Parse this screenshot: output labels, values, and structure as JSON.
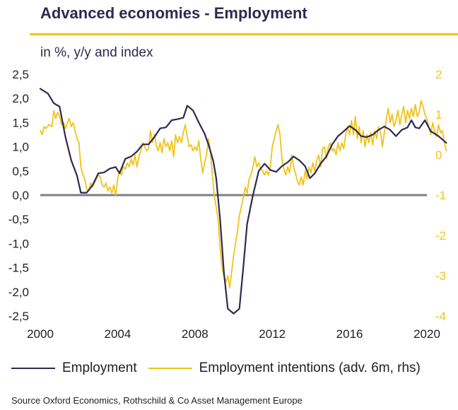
{
  "header": {
    "title": "Advanced economies - Employment",
    "subtitle": "in %, y/y and index",
    "rule_color": "#f5c518"
  },
  "legend": {
    "employment": "Employment",
    "intentions": "Employment intentions (adv. 6m, rhs)"
  },
  "footer": {
    "source": "Source Oxford Economics, Rothschild & Co Asset Management Europe"
  },
  "chart_data": {
    "type": "line",
    "x_axis": {
      "ticks": [
        "2000",
        "2004",
        "2008",
        "2012",
        "2016",
        "2020"
      ],
      "xlim": [
        2000,
        2020
      ]
    },
    "y_left": {
      "ticks": [
        "2,5",
        "2,0",
        "1,5",
        "1,0",
        "0,5",
        "0,0",
        "-0,5",
        "-1,0",
        "-1,5",
        "-2,0",
        "-2,5"
      ],
      "ylim": [
        -2.5,
        2.5
      ]
    },
    "y_right": {
      "ticks": [
        "2",
        "1",
        "0",
        "-1",
        "-2",
        "-3",
        "-4"
      ],
      "ylim": [
        -4,
        2
      ]
    },
    "series": [
      {
        "name": "Employment",
        "axis": "left",
        "color": "#2e2a4f",
        "points": [
          [
            2000.0,
            2.2
          ],
          [
            2000.4,
            2.1
          ],
          [
            2000.7,
            1.9
          ],
          [
            2001.0,
            1.83
          ],
          [
            2001.3,
            1.2
          ],
          [
            2001.6,
            0.72
          ],
          [
            2001.9,
            0.4
          ],
          [
            2002.1,
            0.05
          ],
          [
            2002.4,
            0.05
          ],
          [
            2002.7,
            0.2
          ],
          [
            2003.0,
            0.45
          ],
          [
            2003.3,
            0.47
          ],
          [
            2003.6,
            0.55
          ],
          [
            2003.9,
            0.58
          ],
          [
            2004.1,
            0.45
          ],
          [
            2004.4,
            0.75
          ],
          [
            2004.7,
            0.8
          ],
          [
            2005.0,
            0.9
          ],
          [
            2005.3,
            1.05
          ],
          [
            2005.6,
            1.05
          ],
          [
            2005.9,
            1.2
          ],
          [
            2006.2,
            1.38
          ],
          [
            2006.5,
            1.4
          ],
          [
            2006.8,
            1.55
          ],
          [
            2007.1,
            1.57
          ],
          [
            2007.4,
            1.6
          ],
          [
            2007.6,
            1.85
          ],
          [
            2007.9,
            1.75
          ],
          [
            2008.2,
            1.5
          ],
          [
            2008.5,
            1.27
          ],
          [
            2008.7,
            1.05
          ],
          [
            2008.95,
            0.7
          ],
          [
            2009.1,
            0.35
          ],
          [
            2009.3,
            -0.5
          ],
          [
            2009.5,
            -1.6
          ],
          [
            2009.7,
            -2.35
          ],
          [
            2010.0,
            -2.45
          ],
          [
            2010.3,
            -2.35
          ],
          [
            2010.5,
            -1.5
          ],
          [
            2010.7,
            -0.6
          ],
          [
            2011.0,
            0.0
          ],
          [
            2011.3,
            0.5
          ],
          [
            2011.6,
            0.65
          ],
          [
            2011.9,
            0.52
          ],
          [
            2012.2,
            0.48
          ],
          [
            2012.5,
            0.6
          ],
          [
            2012.8,
            0.68
          ],
          [
            2013.1,
            0.8
          ],
          [
            2013.4,
            0.72
          ],
          [
            2013.7,
            0.6
          ],
          [
            2013.95,
            0.35
          ],
          [
            2014.2,
            0.45
          ],
          [
            2014.5,
            0.65
          ],
          [
            2014.8,
            0.8
          ],
          [
            2015.1,
            1.05
          ],
          [
            2015.4,
            1.22
          ],
          [
            2015.7,
            1.32
          ],
          [
            2016.0,
            1.43
          ],
          [
            2016.3,
            1.35
          ],
          [
            2016.6,
            1.22
          ],
          [
            2016.9,
            1.2
          ],
          [
            2017.2,
            1.25
          ],
          [
            2017.5,
            1.35
          ],
          [
            2017.8,
            1.42
          ],
          [
            2018.1,
            1.35
          ],
          [
            2018.4,
            1.22
          ],
          [
            2018.7,
            1.35
          ],
          [
            2019.0,
            1.4
          ],
          [
            2019.2,
            1.55
          ],
          [
            2019.4,
            1.4
          ],
          [
            2019.6,
            1.38
          ],
          [
            2019.9,
            1.55
          ],
          [
            2020.2,
            1.32
          ],
          [
            2020.6,
            1.22
          ],
          [
            2021.0,
            1.08
          ]
        ]
      },
      {
        "name": "Employment intentions (adv. 6m, rhs)",
        "axis": "right",
        "color": "#f0c419",
        "points": [
          [
            2000.0,
            0.6
          ],
          [
            2000.1,
            0.5
          ],
          [
            2000.2,
            0.7
          ],
          [
            2000.3,
            0.65
          ],
          [
            2000.45,
            0.75
          ],
          [
            2000.6,
            0.7
          ],
          [
            2000.7,
            1.1
          ],
          [
            2000.8,
            0.9
          ],
          [
            2000.9,
            1.05
          ],
          [
            2001.0,
            0.95
          ],
          [
            2001.1,
            0.75
          ],
          [
            2001.2,
            0.8
          ],
          [
            2001.3,
            0.65
          ],
          [
            2001.4,
            0.8
          ],
          [
            2001.5,
            0.9
          ],
          [
            2001.6,
            0.7
          ],
          [
            2001.7,
            0.8
          ],
          [
            2001.8,
            0.6
          ],
          [
            2001.9,
            0.4
          ],
          [
            2002.0,
            0.3
          ],
          [
            2002.1,
            -0.3
          ],
          [
            2002.2,
            -0.5
          ],
          [
            2002.3,
            -0.6
          ],
          [
            2002.4,
            -0.85
          ],
          [
            2002.5,
            -0.9
          ],
          [
            2002.6,
            -0.7
          ],
          [
            2002.7,
            -0.8
          ],
          [
            2002.8,
            -0.7
          ],
          [
            2002.9,
            -0.6
          ],
          [
            2003.0,
            -0.5
          ],
          [
            2003.1,
            -0.55
          ],
          [
            2003.2,
            -0.75
          ],
          [
            2003.3,
            -0.8
          ],
          [
            2003.4,
            -0.7
          ],
          [
            2003.5,
            -0.9
          ],
          [
            2003.6,
            -0.8
          ],
          [
            2003.7,
            -0.95
          ],
          [
            2003.8,
            -0.75
          ],
          [
            2003.9,
            -1.0
          ],
          [
            2004.0,
            -0.6
          ],
          [
            2004.1,
            -0.4
          ],
          [
            2004.2,
            -0.5
          ],
          [
            2004.3,
            -0.3
          ],
          [
            2004.4,
            -0.35
          ],
          [
            2004.5,
            -0.2
          ],
          [
            2004.6,
            -0.3
          ],
          [
            2004.7,
            -0.1
          ],
          [
            2004.8,
            -0.25
          ],
          [
            2004.9,
            0.0
          ],
          [
            2005.0,
            -0.3
          ],
          [
            2005.1,
            -0.05
          ],
          [
            2005.2,
            0.1
          ],
          [
            2005.3,
            0.3
          ],
          [
            2005.4,
            0.2
          ],
          [
            2005.5,
            0.1
          ],
          [
            2005.6,
            0.15
          ],
          [
            2005.7,
            0.6
          ],
          [
            2005.8,
            0.3
          ],
          [
            2005.9,
            0.5
          ],
          [
            2006.0,
            0.25
          ],
          [
            2006.1,
            0.1
          ],
          [
            2006.2,
            0.3
          ],
          [
            2006.3,
            0.05
          ],
          [
            2006.4,
            0.4
          ],
          [
            2006.5,
            0.2
          ],
          [
            2006.6,
            0.3
          ],
          [
            2006.7,
            0.1
          ],
          [
            2006.8,
            0.35
          ],
          [
            2006.9,
            -0.05
          ],
          [
            2007.0,
            0.5
          ],
          [
            2007.1,
            0.3
          ],
          [
            2007.2,
            0.45
          ],
          [
            2007.3,
            0.3
          ],
          [
            2007.4,
            0.55
          ],
          [
            2007.5,
            0.75
          ],
          [
            2007.6,
            0.45
          ],
          [
            2007.7,
            0.2
          ],
          [
            2007.8,
            0.25
          ],
          [
            2007.9,
            0.1
          ],
          [
            2008.0,
            0.2
          ],
          [
            2008.1,
            0.1
          ],
          [
            2008.2,
            0.35
          ],
          [
            2008.3,
            -0.1
          ],
          [
            2008.4,
            -0.45
          ],
          [
            2008.5,
            -0.2
          ],
          [
            2008.6,
            0.0
          ],
          [
            2008.7,
            0.4
          ],
          [
            2008.8,
            0.1
          ],
          [
            2008.9,
            -0.5
          ],
          [
            2009.0,
            -1.0
          ],
          [
            2009.1,
            -1.3
          ],
          [
            2009.2,
            -1.6
          ],
          [
            2009.3,
            -2.3
          ],
          [
            2009.4,
            -2.8
          ],
          [
            2009.5,
            -3.0
          ],
          [
            2009.6,
            -3.15
          ],
          [
            2009.7,
            -3.0
          ],
          [
            2009.8,
            -3.3
          ],
          [
            2009.9,
            -2.9
          ],
          [
            2010.0,
            -2.5
          ],
          [
            2010.1,
            -2.2
          ],
          [
            2010.2,
            -1.9
          ],
          [
            2010.3,
            -1.5
          ],
          [
            2010.4,
            -1.3
          ],
          [
            2010.5,
            -1.05
          ],
          [
            2010.6,
            -0.8
          ],
          [
            2010.7,
            -0.95
          ],
          [
            2010.8,
            -0.6
          ],
          [
            2010.9,
            -0.5
          ],
          [
            2011.0,
            -0.3
          ],
          [
            2011.1,
            -0.05
          ],
          [
            2011.2,
            -0.3
          ],
          [
            2011.3,
            -0.2
          ],
          [
            2011.4,
            -0.35
          ],
          [
            2011.5,
            -0.4
          ],
          [
            2011.6,
            -0.5
          ],
          [
            2011.7,
            -0.4
          ],
          [
            2011.8,
            -0.5
          ],
          [
            2011.9,
            -0.3
          ],
          [
            2012.0,
            0.2
          ],
          [
            2012.1,
            0.4
          ],
          [
            2012.2,
            0.6
          ],
          [
            2012.3,
            0.75
          ],
          [
            2012.4,
            0.5
          ],
          [
            2012.5,
            -0.1
          ],
          [
            2012.6,
            -0.35
          ],
          [
            2012.7,
            -0.5
          ],
          [
            2012.8,
            -0.3
          ],
          [
            2012.9,
            -0.45
          ],
          [
            2013.0,
            0.0
          ],
          [
            2013.1,
            -0.3
          ],
          [
            2013.2,
            -0.45
          ],
          [
            2013.3,
            -0.65
          ],
          [
            2013.4,
            -0.75
          ],
          [
            2013.5,
            -0.55
          ],
          [
            2013.6,
            -0.75
          ],
          [
            2013.7,
            -0.4
          ],
          [
            2013.8,
            -0.6
          ],
          [
            2013.9,
            -0.3
          ],
          [
            2014.0,
            -0.45
          ],
          [
            2014.1,
            -0.2
          ],
          [
            2014.2,
            -0.4
          ],
          [
            2014.3,
            -0.15
          ],
          [
            2014.4,
            0.0
          ],
          [
            2014.5,
            -0.3
          ],
          [
            2014.6,
            0.15
          ],
          [
            2014.7,
            0.2
          ],
          [
            2014.8,
            -0.1
          ],
          [
            2014.9,
            0.2
          ],
          [
            2015.0,
            0.3
          ],
          [
            2015.1,
            0.1
          ],
          [
            2015.2,
            0.15
          ],
          [
            2015.3,
            0.0
          ],
          [
            2015.4,
            0.3
          ],
          [
            2015.5,
            0.1
          ],
          [
            2015.6,
            0.3
          ],
          [
            2015.7,
            0.15
          ],
          [
            2015.8,
            0.5
          ],
          [
            2015.9,
            0.7
          ],
          [
            2016.0,
            0.5
          ],
          [
            2016.1,
            0.85
          ],
          [
            2016.2,
            0.5
          ],
          [
            2016.3,
            0.95
          ],
          [
            2016.4,
            0.4
          ],
          [
            2016.5,
            0.7
          ],
          [
            2016.6,
            0.3
          ],
          [
            2016.7,
            0.6
          ],
          [
            2016.8,
            0.2
          ],
          [
            2016.9,
            0.5
          ],
          [
            2017.0,
            0.3
          ],
          [
            2017.1,
            0.55
          ],
          [
            2017.2,
            0.25
          ],
          [
            2017.3,
            0.6
          ],
          [
            2017.4,
            0.4
          ],
          [
            2017.5,
            0.7
          ],
          [
            2017.6,
            0.55
          ],
          [
            2017.7,
            0.2
          ],
          [
            2017.8,
            0.55
          ],
          [
            2017.9,
            0.9
          ],
          [
            2018.0,
            1.15
          ],
          [
            2018.1,
            0.8
          ],
          [
            2018.2,
            1.0
          ],
          [
            2018.3,
            0.7
          ],
          [
            2018.4,
            0.85
          ],
          [
            2018.5,
            1.1
          ],
          [
            2018.6,
            0.75
          ],
          [
            2018.7,
            1.0
          ],
          [
            2018.8,
            1.2
          ],
          [
            2018.9,
            0.8
          ],
          [
            2019.0,
            1.1
          ],
          [
            2019.1,
            0.9
          ],
          [
            2019.2,
            1.15
          ],
          [
            2019.3,
            0.95
          ],
          [
            2019.4,
            1.25
          ],
          [
            2019.5,
            0.95
          ],
          [
            2019.6,
            1.05
          ],
          [
            2019.7,
            1.35
          ],
          [
            2019.8,
            1.2
          ],
          [
            2019.9,
            1.0
          ],
          [
            2020.0,
            0.9
          ],
          [
            2020.1,
            0.7
          ],
          [
            2020.2,
            0.5
          ],
          [
            2020.3,
            0.8
          ],
          [
            2020.4,
            0.6
          ],
          [
            2020.5,
            0.45
          ],
          [
            2020.6,
            0.75
          ],
          [
            2020.7,
            0.55
          ],
          [
            2020.8,
            0.6
          ],
          [
            2020.9,
            0.3
          ],
          [
            2021.0,
            0.1
          ]
        ]
      }
    ]
  }
}
